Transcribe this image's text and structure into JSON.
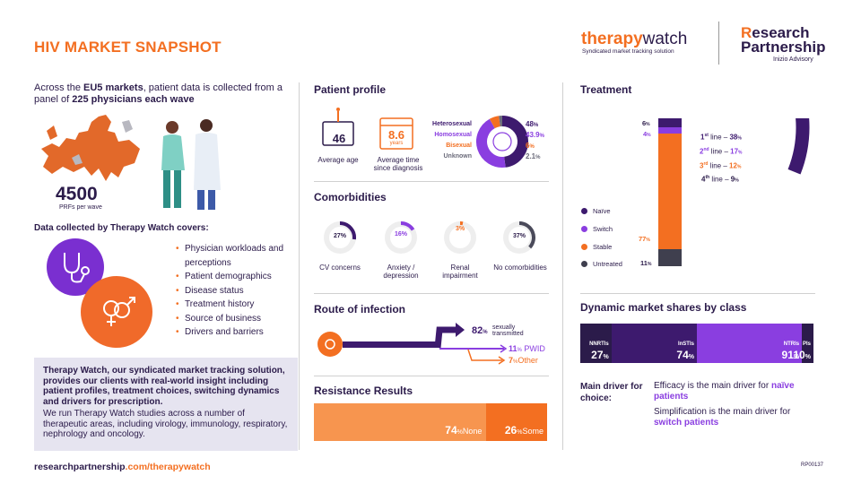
{
  "header": {
    "title": "HIV MARKET SNAPSHOT",
    "logo_therapy": "therapy",
    "logo_watch": "watch",
    "logo_sub": "Syndicated market tracking solution",
    "rp_line1_r": "R",
    "rp_line1_rest": "esearch",
    "rp_line2": "Partnership",
    "rp_sub": "Inizio Advisory"
  },
  "left": {
    "intro_1": "Across the ",
    "intro_2": "EU5 markets",
    "intro_3": ", patient data is collected from a panel of ",
    "intro_4": "225 physicians each wave",
    "prfs_value": "4500",
    "prfs_label": "PRFs per wave",
    "covers_heading": "Data collected by Therapy Watch covers:",
    "bullets": [
      "Physician workloads and perceptions",
      "Patient demographics",
      "Disease status",
      "Treatment history",
      "Source of business",
      "Drivers and barriers"
    ],
    "box_bold": "Therapy Watch, our syndicated market tracking solution, provides our clients with real-world insight including patient profiles, treatment choices, switching dynamics and drivers for prescription.",
    "box_text": "We run Therapy Watch studies across a number of therapeutic areas, including virology, immunology, respiratory, nephrology and oncology."
  },
  "patient_profile": {
    "heading": "Patient profile",
    "age_value": "46",
    "age_label": "Average age",
    "time_value": "8.6",
    "time_unit": "years",
    "time_label": "Average time since diagnosis",
    "orientation": [
      {
        "label": "Heterosexual",
        "value": "48",
        "color": "#3d1a6e"
      },
      {
        "label": "Homosexual",
        "value": "43.9",
        "color": "#8a3ee0"
      },
      {
        "label": "Bisexual",
        "value": "6",
        "color": "#f36f21"
      },
      {
        "label": "Unknown",
        "value": "2.1",
        "color": "#6b6b7a"
      }
    ],
    "orientation_shares": [
      48,
      43.9,
      6,
      2.1
    ]
  },
  "comorbidities": {
    "heading": "Comorbidities",
    "items": [
      {
        "value": "27%",
        "label": "CV concerns",
        "share": 27,
        "color": "#3d1a6e"
      },
      {
        "value": "16%",
        "label": "Anxiety / depression",
        "share": 16,
        "color": "#8a3ee0"
      },
      {
        "value": "3%",
        "label": "Renal impairment",
        "share": 3,
        "color": "#f36f21"
      },
      {
        "value": "37%",
        "label": "No comorbidities",
        "share": 37,
        "color": "#4a4a5a"
      }
    ]
  },
  "route": {
    "heading": "Route of infection",
    "sexual_value": "82",
    "sexual_label_1": "sexually",
    "sexual_label_2": "transmitted",
    "pwid_value": "11",
    "pwid_label": "PWID",
    "other_value": "7",
    "other_label": "Other",
    "pct": "%"
  },
  "resistance": {
    "heading": "Resistance Results",
    "none_value": "74",
    "none_label": "None",
    "some_value": "26",
    "some_label": "Some",
    "pct": "%"
  },
  "treatment": {
    "heading": "Treatment",
    "bar": [
      {
        "label": "Naïve",
        "value": "6",
        "share": 6,
        "color": "#3d1a6e"
      },
      {
        "label": "Switch",
        "value": "4",
        "share": 4,
        "color": "#8a3ee0"
      },
      {
        "label": "Stable",
        "value": "77",
        "share": 77,
        "color": "#f36f21"
      },
      {
        "label": "Untreated",
        "value": "11",
        "share": 11,
        "color": "#3f3f4e"
      }
    ],
    "lines": [
      {
        "ord": "1",
        "sup": "st",
        "rest": " line – ",
        "value": "38",
        "color": "#3d1a6e"
      },
      {
        "ord": "2",
        "sup": "nd",
        "rest": " line – ",
        "value": "17",
        "color": "#8a3ee0"
      },
      {
        "ord": "3",
        "sup": "rd",
        "rest": " line – ",
        "value": "12",
        "color": "#f36f21"
      },
      {
        "ord": "4",
        "sup": "th",
        "rest": " line – ",
        "value": "9",
        "color": "#2b1b4a"
      }
    ],
    "pct": "%"
  },
  "shares": {
    "heading": "Dynamic market shares by class",
    "segments": [
      {
        "name": "NNRTIs",
        "value": "27",
        "share": 27,
        "color": "#2b1b4a"
      },
      {
        "name": "InSTIs",
        "value": "74",
        "share": 74,
        "color": "#3d1a6e"
      },
      {
        "name": "NTRIs",
        "value": "91",
        "share": 91,
        "color": "#8a3ee0"
      },
      {
        "name": "PIs",
        "value": "10",
        "share": 10,
        "color": "#2b1b4a"
      }
    ],
    "pct": "%"
  },
  "drivers": {
    "label": "Main driver for choice:",
    "line1": "Efficacy is the main driver for",
    "line1_b": "naïve patients",
    "line2": "Simplification is the main driver for",
    "line2_b": "switch patients"
  },
  "footer": {
    "url_a": "researchpartnership",
    "url_b": ".com/therapywatch",
    "code": "RP00137"
  }
}
